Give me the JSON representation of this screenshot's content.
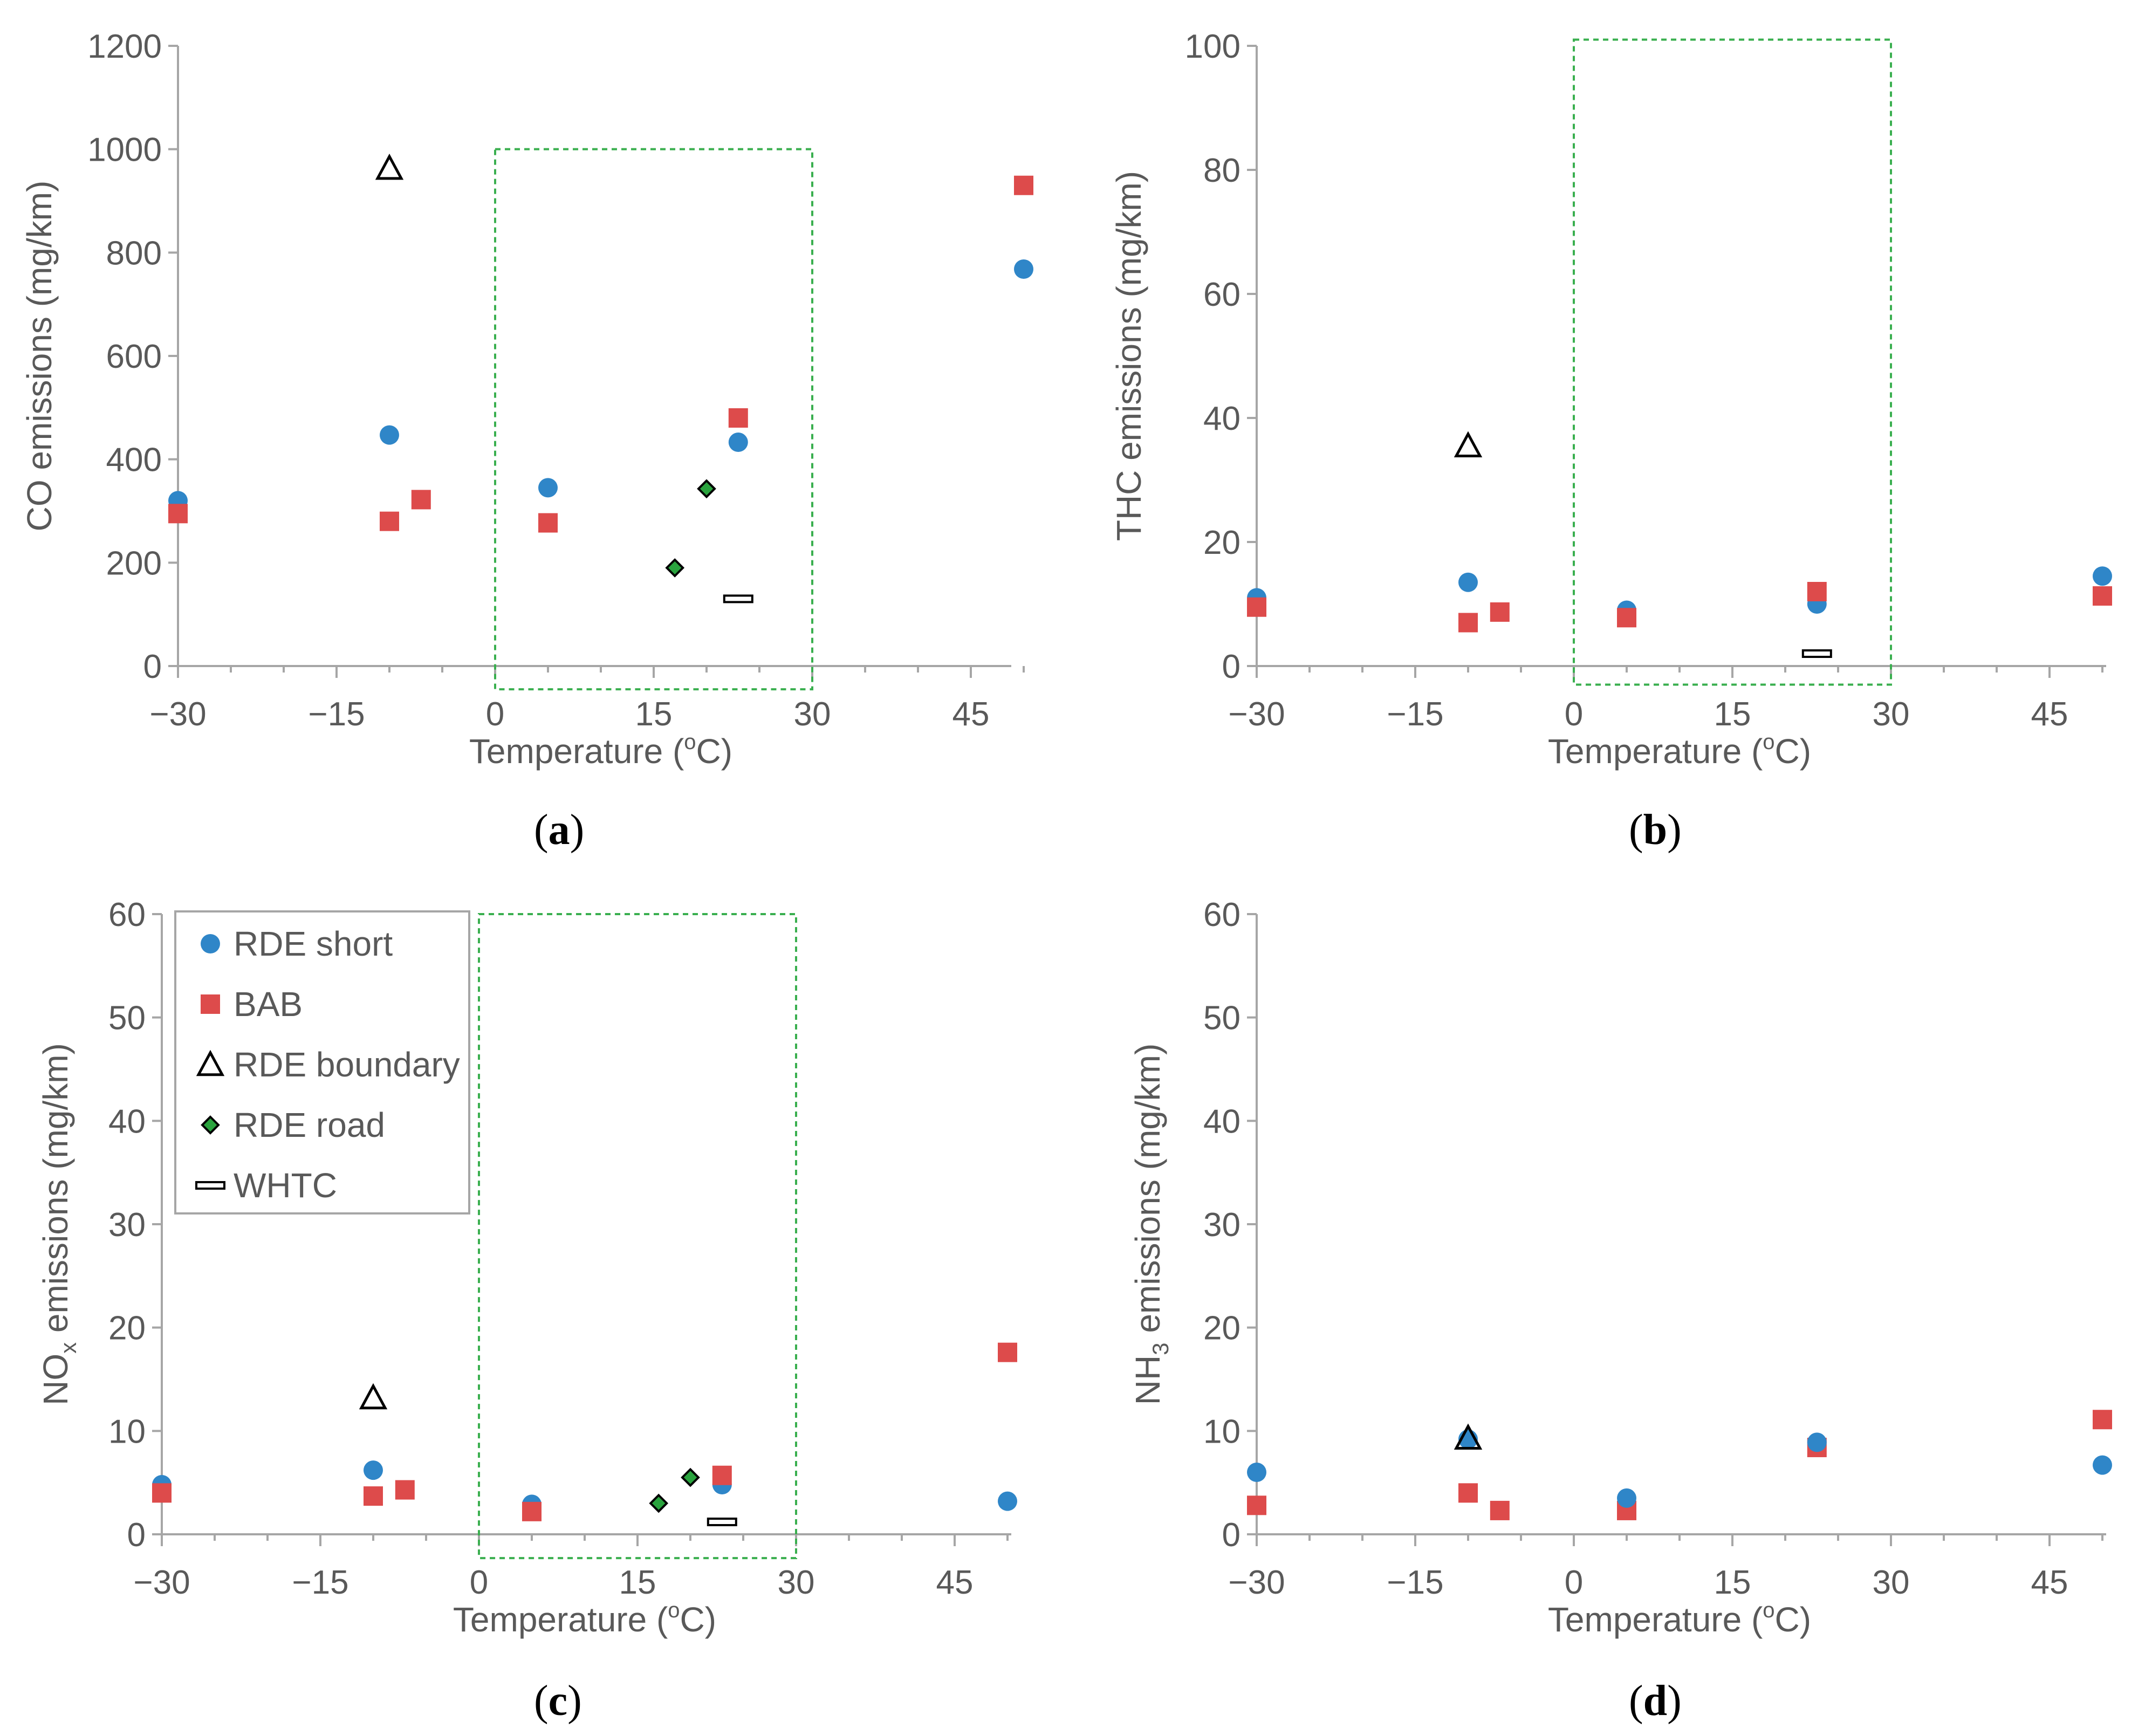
{
  "colors": {
    "rde_short": "#2f86c8",
    "bab": "#dd4b4b",
    "rde_boundary": "#000000",
    "rde_road": "#2aa33e",
    "whtc": "#000000",
    "box": "#3aaf4f",
    "axis": "#a6a6a6",
    "text": "#595959"
  },
  "legend": [
    {
      "key": "rde_short",
      "label": "RDE short",
      "icon": "circle-icon"
    },
    {
      "key": "bab",
      "label": "BAB",
      "icon": "square-icon"
    },
    {
      "key": "rde_boundary",
      "label": "RDE boundary",
      "icon": "triangle-icon"
    },
    {
      "key": "rde_road",
      "label": "RDE road",
      "icon": "diamond-icon"
    },
    {
      "key": "whtc",
      "label": "WHTC",
      "icon": "dash-icon"
    }
  ],
  "chart_data": [
    {
      "id": "a",
      "type": "scatter",
      "panel_label": {
        "open": "(",
        "letter": "a",
        "close": ")"
      },
      "xlabel": {
        "main": "Temperature (",
        "sup": "o",
        "tail": "C)"
      },
      "ylabel": {
        "main": "CO emissions (mg/km)",
        "sub": "",
        "tail": ""
      },
      "xlim": [
        -30,
        50
      ],
      "ylim": [
        0,
        1200
      ],
      "xticks": [
        -30,
        -15,
        0,
        15,
        30,
        45
      ],
      "xtick_labels": [
        "−30",
        "−15",
        "0",
        "15",
        "30",
        "45"
      ],
      "yticks": [
        0,
        200,
        400,
        600,
        800,
        1000,
        1200
      ],
      "ytick_labels": [
        "0",
        "200",
        "400",
        "600",
        "800",
        "1000",
        "1200"
      ],
      "box": {
        "x": [
          0,
          30
        ],
        "y": [
          -45,
          1000
        ]
      },
      "series": [
        {
          "key": "rde_short",
          "name": "RDE short",
          "points": [
            [
              -30,
              320
            ],
            [
              -10,
              447
            ],
            [
              5,
              345
            ],
            [
              23,
              433
            ],
            [
              50,
              768
            ]
          ]
        },
        {
          "key": "bab",
          "name": "BAB",
          "points": [
            [
              -30,
              295
            ],
            [
              -10,
              280
            ],
            [
              -7,
              322
            ],
            [
              5,
              277
            ],
            [
              23,
              480
            ],
            [
              50,
              930
            ]
          ]
        },
        {
          "key": "rde_boundary",
          "name": "RDE boundary",
          "points": [
            [
              -10,
              963
            ]
          ]
        },
        {
          "key": "rde_road",
          "name": "RDE road",
          "points": [
            [
              17,
              190
            ],
            [
              20,
              343
            ]
          ]
        },
        {
          "key": "whtc",
          "name": "WHTC",
          "points": [
            [
              23,
              130
            ]
          ]
        }
      ]
    },
    {
      "id": "b",
      "type": "scatter",
      "panel_label": {
        "open": "(",
        "letter": "b",
        "close": ")"
      },
      "xlabel": {
        "main": "Temperature (",
        "sup": "o",
        "tail": "C)"
      },
      "ylabel": {
        "main": "THC emissions (mg/km)",
        "sub": "",
        "tail": ""
      },
      "xlim": [
        -30,
        50
      ],
      "ylim": [
        0,
        100
      ],
      "xticks": [
        -30,
        -15,
        0,
        15,
        30,
        45
      ],
      "xtick_labels": [
        "−30",
        "−15",
        "0",
        "15",
        "30",
        "45"
      ],
      "yticks": [
        0,
        20,
        40,
        60,
        80,
        100
      ],
      "ytick_labels": [
        "0",
        "20",
        "40",
        "60",
        "80",
        "100"
      ],
      "box": {
        "x": [
          0,
          30
        ],
        "y": [
          -3,
          101
        ]
      },
      "series": [
        {
          "key": "rde_short",
          "name": "RDE short",
          "points": [
            [
              -30,
              11
            ],
            [
              -10,
              13.5
            ],
            [
              5,
              9
            ],
            [
              23,
              10
            ],
            [
              50,
              14.5
            ]
          ]
        },
        {
          "key": "bab",
          "name": "BAB",
          "points": [
            [
              -30,
              9.5
            ],
            [
              -10,
              7
            ],
            [
              -7,
              8.7
            ],
            [
              5,
              7.8
            ],
            [
              23,
              12
            ],
            [
              50,
              11.3
            ]
          ]
        },
        {
          "key": "rde_boundary",
          "name": "RDE boundary",
          "points": [
            [
              -10,
              35.5
            ]
          ]
        },
        {
          "key": "rde_road",
          "name": "RDE road",
          "points": []
        },
        {
          "key": "whtc",
          "name": "WHTC",
          "points": [
            [
              23,
              2
            ]
          ]
        }
      ]
    },
    {
      "id": "c",
      "type": "scatter",
      "panel_label": {
        "open": "(",
        "letter": "c",
        "close": ")"
      },
      "xlabel": {
        "main": "Temperature (",
        "sup": "o",
        "tail": "C)"
      },
      "ylabel": {
        "main": "NO",
        "sub": "x",
        "tail": " emissions (mg/km)"
      },
      "xlim": [
        -30,
        50
      ],
      "ylim": [
        0,
        60
      ],
      "xticks": [
        -30,
        -15,
        0,
        15,
        30,
        45
      ],
      "xtick_labels": [
        "−30",
        "−15",
        "0",
        "15",
        "30",
        "45"
      ],
      "yticks": [
        0,
        10,
        20,
        30,
        40,
        50,
        60
      ],
      "ytick_labels": [
        "0",
        "10",
        "20",
        "30",
        "40",
        "50",
        "60"
      ],
      "box": {
        "x": [
          0,
          30
        ],
        "y": [
          -2.3,
          60
        ]
      },
      "legend_position": "top-left",
      "series": [
        {
          "key": "rde_short",
          "name": "RDE short",
          "points": [
            [
              -30,
              4.8
            ],
            [
              -10,
              6.2
            ],
            [
              5,
              2.9
            ],
            [
              23,
              4.8
            ],
            [
              50,
              3.2
            ]
          ]
        },
        {
          "key": "bab",
          "name": "BAB",
          "points": [
            [
              -30,
              4
            ],
            [
              -10,
              3.7
            ],
            [
              -7,
              4.3
            ],
            [
              5,
              2.2
            ],
            [
              23,
              5.7
            ],
            [
              50,
              17.6
            ]
          ]
        },
        {
          "key": "rde_boundary",
          "name": "RDE boundary",
          "points": [
            [
              -10,
              13.2
            ]
          ]
        },
        {
          "key": "rde_road",
          "name": "RDE road",
          "points": [
            [
              17,
              3
            ],
            [
              20,
              5.5
            ]
          ]
        },
        {
          "key": "whtc",
          "name": "WHTC",
          "points": [
            [
              23,
              1.2
            ]
          ]
        }
      ]
    },
    {
      "id": "d",
      "type": "scatter",
      "panel_label": {
        "open": "(",
        "letter": "d",
        "close": ")"
      },
      "xlabel": {
        "main": "Temperature (",
        "sup": "o",
        "tail": "C)"
      },
      "ylabel": {
        "main": "NH",
        "sub": "3",
        "tail": " emissions (mg/km)"
      },
      "xlim": [
        -30,
        50
      ],
      "ylim": [
        0,
        60
      ],
      "xticks": [
        -30,
        -15,
        0,
        15,
        30,
        45
      ],
      "xtick_labels": [
        "−30",
        "−15",
        "0",
        "15",
        "30",
        "45"
      ],
      "yticks": [
        0,
        10,
        20,
        30,
        40,
        50,
        60
      ],
      "ytick_labels": [
        "0",
        "10",
        "20",
        "30",
        "40",
        "50",
        "60"
      ],
      "box": null,
      "series": [
        {
          "key": "rde_short",
          "name": "RDE short",
          "points": [
            [
              -30,
              6
            ],
            [
              -10,
              9.2
            ],
            [
              5,
              3.5
            ],
            [
              23,
              8.9
            ],
            [
              50,
              6.7
            ]
          ]
        },
        {
          "key": "bab",
          "name": "BAB",
          "points": [
            [
              -30,
              2.8
            ],
            [
              -10,
              4
            ],
            [
              -7,
              2.3
            ],
            [
              5,
              2.3
            ],
            [
              23,
              8.4
            ],
            [
              50,
              11.1
            ]
          ]
        },
        {
          "key": "rde_boundary",
          "name": "RDE boundary",
          "points": [
            [
              -10,
              9.3
            ]
          ]
        },
        {
          "key": "rde_road",
          "name": "RDE road",
          "points": []
        },
        {
          "key": "whtc",
          "name": "WHTC",
          "points": []
        }
      ]
    }
  ]
}
